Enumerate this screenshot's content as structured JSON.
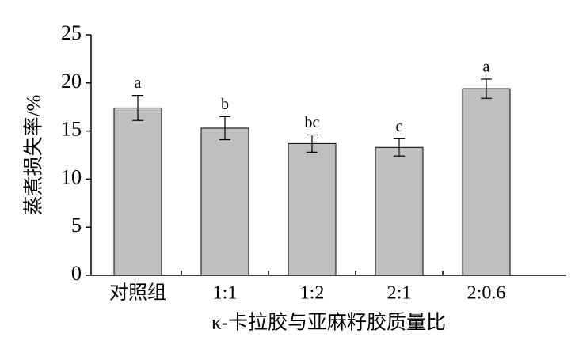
{
  "chart_data": {
    "type": "bar",
    "x_label": "κ-卡拉胶与亚麻籽胶质量比",
    "y_label": "蒸煮损失率/%",
    "categories": [
      "对照组",
      "1:1",
      "1:2",
      "2:1",
      "2:0.6"
    ],
    "values": [
      17.4,
      15.3,
      13.7,
      13.3,
      19.4
    ],
    "errors": [
      1.3,
      1.2,
      0.9,
      0.9,
      1.0
    ],
    "significance_letters": [
      "a",
      "b",
      "bc",
      "c",
      "a"
    ],
    "color": "#bfbfbf",
    "ylim": [
      0,
      25
    ],
    "yticks": [
      0,
      5,
      10,
      15,
      20,
      25
    ],
    "grid": false
  }
}
